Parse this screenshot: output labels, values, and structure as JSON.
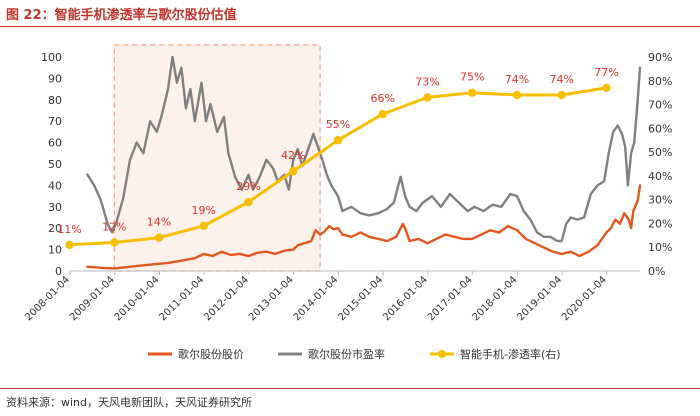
{
  "header": {
    "title": "图 22：智能手机渗透率与歌尔股份估值"
  },
  "footer": {
    "source": "资料来源：wind，天风电新团队，天风证券研究所"
  },
  "chart_data": {
    "type": "line",
    "title": "图 22：智能手机渗透率与歌尔股份估值",
    "left_axis": {
      "min": 0,
      "max": 100,
      "step": 10,
      "ticks": [
        "0",
        "10",
        "20",
        "30",
        "40",
        "50",
        "60",
        "70",
        "80",
        "90",
        "100"
      ]
    },
    "right_axis": {
      "min": 0,
      "max": 90,
      "step": 10,
      "ticks": [
        "0%",
        "10%",
        "20%",
        "30%",
        "40%",
        "50%",
        "60%",
        "70%",
        "80%",
        "90%"
      ]
    },
    "x_start": 2008.01,
    "x_end": 2020.75,
    "x_ticks": [
      {
        "label": "2008-01-04",
        "year": 2008.01
      },
      {
        "label": "2009-01-04",
        "year": 2009.01
      },
      {
        "label": "2010-01-04",
        "year": 2010.01
      },
      {
        "label": "2011-01-04",
        "year": 2011.01
      },
      {
        "label": "2012-01-04",
        "year": 2012.01
      },
      {
        "label": "2013-01-04",
        "year": 2013.01
      },
      {
        "label": "2014-01-04",
        "year": 2014.01
      },
      {
        "label": "2015-01-04",
        "year": 2015.01
      },
      {
        "label": "2016-01-04",
        "year": 2016.01
      },
      {
        "label": "2017-01-04",
        "year": 2017.01
      },
      {
        "label": "2018-01-04",
        "year": 2018.01
      },
      {
        "label": "2019-01-04",
        "year": 2019.01
      },
      {
        "label": "2020-01-04",
        "year": 2020.01
      }
    ],
    "highlight_region": {
      "from": 2009.0,
      "to": 2013.6
    },
    "series": [
      {
        "name": "歌尔股份股价",
        "axis": "left",
        "color": "#e2571e",
        "points": [
          [
            2008.4,
            2
          ],
          [
            2008.7,
            1.5
          ],
          [
            2009.0,
            1.2
          ],
          [
            2009.3,
            1.8
          ],
          [
            2009.6,
            2.5
          ],
          [
            2009.9,
            3.2
          ],
          [
            2010.2,
            3.8
          ],
          [
            2010.5,
            4.8
          ],
          [
            2010.8,
            6
          ],
          [
            2011.0,
            8
          ],
          [
            2011.2,
            7
          ],
          [
            2011.4,
            9
          ],
          [
            2011.6,
            7.5
          ],
          [
            2011.8,
            8
          ],
          [
            2012.0,
            7
          ],
          [
            2012.2,
            8.5
          ],
          [
            2012.4,
            9
          ],
          [
            2012.6,
            8
          ],
          [
            2012.8,
            9.5
          ],
          [
            2013.0,
            10
          ],
          [
            2013.1,
            12
          ],
          [
            2013.25,
            13
          ],
          [
            2013.4,
            14
          ],
          [
            2013.5,
            19
          ],
          [
            2013.6,
            17
          ],
          [
            2013.7,
            18.5
          ],
          [
            2013.8,
            21
          ],
          [
            2013.9,
            19.5
          ],
          [
            2014.0,
            20
          ],
          [
            2014.1,
            17
          ],
          [
            2014.3,
            16
          ],
          [
            2014.5,
            18
          ],
          [
            2014.7,
            16
          ],
          [
            2014.9,
            15
          ],
          [
            2015.1,
            14
          ],
          [
            2015.3,
            16
          ],
          [
            2015.45,
            22
          ],
          [
            2015.5,
            20
          ],
          [
            2015.6,
            14
          ],
          [
            2015.8,
            15
          ],
          [
            2016.0,
            13
          ],
          [
            2016.2,
            15
          ],
          [
            2016.4,
            17
          ],
          [
            2016.6,
            16
          ],
          [
            2016.8,
            15
          ],
          [
            2017.0,
            15
          ],
          [
            2017.2,
            17
          ],
          [
            2017.4,
            19
          ],
          [
            2017.6,
            18
          ],
          [
            2017.8,
            21
          ],
          [
            2018.0,
            19
          ],
          [
            2018.2,
            15
          ],
          [
            2018.4,
            13
          ],
          [
            2018.6,
            11
          ],
          [
            2018.8,
            9
          ],
          [
            2019.0,
            8
          ],
          [
            2019.2,
            9
          ],
          [
            2019.4,
            7
          ],
          [
            2019.6,
            9
          ],
          [
            2019.8,
            12
          ],
          [
            2020.0,
            18
          ],
          [
            2020.1,
            20
          ],
          [
            2020.2,
            24
          ],
          [
            2020.3,
            22
          ],
          [
            2020.4,
            27
          ],
          [
            2020.5,
            24
          ],
          [
            2020.55,
            20
          ],
          [
            2020.6,
            28
          ],
          [
            2020.7,
            33
          ],
          [
            2020.75,
            40
          ]
        ]
      },
      {
        "name": "歌尔股份市盈率",
        "axis": "left",
        "color": "#808080",
        "points": [
          [
            2008.4,
            45
          ],
          [
            2008.55,
            40
          ],
          [
            2008.7,
            33
          ],
          [
            2008.85,
            22
          ],
          [
            2008.95,
            18
          ],
          [
            2009.05,
            23
          ],
          [
            2009.2,
            34
          ],
          [
            2009.35,
            52
          ],
          [
            2009.5,
            60
          ],
          [
            2009.65,
            55
          ],
          [
            2009.8,
            70
          ],
          [
            2009.95,
            65
          ],
          [
            2010.05,
            72
          ],
          [
            2010.2,
            85
          ],
          [
            2010.3,
            100
          ],
          [
            2010.4,
            88
          ],
          [
            2010.5,
            95
          ],
          [
            2010.6,
            76
          ],
          [
            2010.7,
            85
          ],
          [
            2010.8,
            70
          ],
          [
            2010.95,
            88
          ],
          [
            2011.05,
            70
          ],
          [
            2011.15,
            78
          ],
          [
            2011.3,
            65
          ],
          [
            2011.45,
            72
          ],
          [
            2011.55,
            55
          ],
          [
            2011.7,
            44
          ],
          [
            2011.85,
            38
          ],
          [
            2012.0,
            45
          ],
          [
            2012.1,
            38
          ],
          [
            2012.25,
            44
          ],
          [
            2012.4,
            52
          ],
          [
            2012.55,
            48
          ],
          [
            2012.65,
            42
          ],
          [
            2012.8,
            45
          ],
          [
            2012.9,
            38
          ],
          [
            2013.0,
            52
          ],
          [
            2013.1,
            57
          ],
          [
            2013.2,
            49
          ],
          [
            2013.3,
            55
          ],
          [
            2013.45,
            64
          ],
          [
            2013.55,
            58
          ],
          [
            2013.65,
            52
          ],
          [
            2013.75,
            45
          ],
          [
            2013.85,
            40
          ],
          [
            2014.0,
            35
          ],
          [
            2014.1,
            28
          ],
          [
            2014.3,
            30
          ],
          [
            2014.5,
            27
          ],
          [
            2014.7,
            26
          ],
          [
            2014.9,
            27
          ],
          [
            2015.1,
            29
          ],
          [
            2015.25,
            32
          ],
          [
            2015.4,
            44
          ],
          [
            2015.5,
            35
          ],
          [
            2015.6,
            30
          ],
          [
            2015.75,
            28
          ],
          [
            2015.9,
            32
          ],
          [
            2016.1,
            35
          ],
          [
            2016.3,
            30
          ],
          [
            2016.5,
            36
          ],
          [
            2016.7,
            32
          ],
          [
            2016.9,
            28
          ],
          [
            2017.05,
            30
          ],
          [
            2017.25,
            28
          ],
          [
            2017.45,
            31
          ],
          [
            2017.65,
            30
          ],
          [
            2017.85,
            36
          ],
          [
            2018.0,
            35
          ],
          [
            2018.15,
            28
          ],
          [
            2018.3,
            24
          ],
          [
            2018.45,
            18
          ],
          [
            2018.6,
            16
          ],
          [
            2018.75,
            16
          ],
          [
            2018.9,
            14
          ],
          [
            2019.0,
            14
          ],
          [
            2019.1,
            22
          ],
          [
            2019.2,
            25
          ],
          [
            2019.35,
            24
          ],
          [
            2019.5,
            25
          ],
          [
            2019.65,
            36
          ],
          [
            2019.8,
            40
          ],
          [
            2019.95,
            42
          ],
          [
            2020.05,
            55
          ],
          [
            2020.15,
            65
          ],
          [
            2020.25,
            68
          ],
          [
            2020.35,
            64
          ],
          [
            2020.42,
            58
          ],
          [
            2020.48,
            40
          ],
          [
            2020.55,
            55
          ],
          [
            2020.62,
            60
          ],
          [
            2020.68,
            75
          ],
          [
            2020.75,
            95
          ]
        ]
      },
      {
        "name": "智能手机-渗透率(右)",
        "axis": "right",
        "color": "#f8bf00",
        "marker": "circle",
        "points": [
          [
            2008.0,
            11
          ],
          [
            2009.0,
            12
          ],
          [
            2010.0,
            14
          ],
          [
            2011.0,
            19
          ],
          [
            2012.0,
            29
          ],
          [
            2013.0,
            42
          ],
          [
            2014.0,
            55
          ],
          [
            2015.0,
            66
          ],
          [
            2016.0,
            73
          ],
          [
            2017.0,
            75
          ],
          [
            2018.0,
            74
          ],
          [
            2019.0,
            74
          ],
          [
            2020.0,
            77
          ]
        ],
        "labels": [
          "11%",
          "12%",
          "14%",
          "19%",
          "29%",
          "42%",
          "55%",
          "66%",
          "73%",
          "75%",
          "74%",
          "74%",
          "77%"
        ]
      }
    ],
    "legend": [
      {
        "label": "歌尔股份股价",
        "color": "#e2571e"
      },
      {
        "label": "歌尔股份市盈率",
        "color": "#808080"
      },
      {
        "label": "智能手机-渗透率(右)",
        "color": "#f8bf00"
      }
    ]
  }
}
